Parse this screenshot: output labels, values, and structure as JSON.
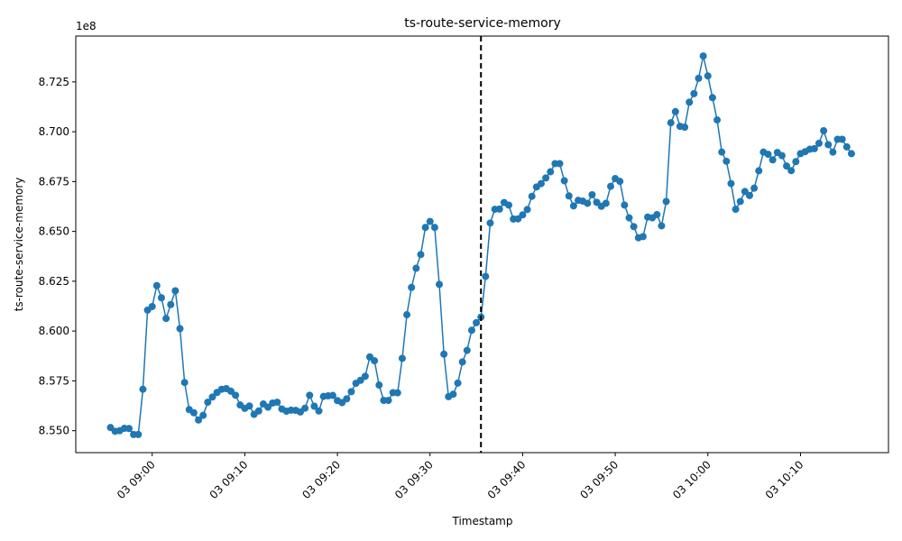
{
  "chart_data": {
    "type": "line",
    "title": "ts-route-service-memory",
    "xlabel": "Timestamp",
    "ylabel": "ts-route-service-memory",
    "y_offset_label": "1e8",
    "x_ticks": [
      "03 09:00",
      "03 09:10",
      "03 09:20",
      "03 09:30",
      "03 09:40",
      "03 09:50",
      "03 10:00",
      "03 10:10"
    ],
    "y_ticks": [
      "8.550",
      "8.575",
      "8.600",
      "8.625",
      "8.650",
      "8.675",
      "8.700",
      "8.725"
    ],
    "ylim": [
      853900000,
      874800000
    ],
    "xlim_minutes": [
      -8.25,
      79.5
    ],
    "grid": false,
    "marker": "circle",
    "series_color": "#1f77b4",
    "vline": {
      "x": "03 09:35:30",
      "style": "dashed",
      "color": "#000000"
    },
    "series": [
      {
        "x": [
          "03 08:55:30",
          "03 08:56:00",
          "03 08:56:30",
          "03 08:57:00",
          "03 08:57:30",
          "03 08:58:00",
          "03 08:58:30",
          "03 08:59:00",
          "03 08:59:30",
          "03 09:00:00",
          "03 09:00:30",
          "03 09:01:00",
          "03 09:01:30",
          "03 09:02:00",
          "03 09:02:30",
          "03 09:03:00",
          "03 09:03:30",
          "03 09:04:00",
          "03 09:04:30",
          "03 09:05:00",
          "03 09:05:30",
          "03 09:06:00",
          "03 09:06:30",
          "03 09:07:00",
          "03 09:07:30",
          "03 09:08:00",
          "03 09:08:30",
          "03 09:09:00",
          "03 09:09:30",
          "03 09:10:00",
          "03 09:10:30",
          "03 09:11:00",
          "03 09:11:30",
          "03 09:12:00",
          "03 09:12:30",
          "03 09:13:00",
          "03 09:13:30",
          "03 09:14:00",
          "03 09:14:30",
          "03 09:15:00",
          "03 09:15:30",
          "03 09:16:00",
          "03 09:16:30",
          "03 09:17:00",
          "03 09:17:30",
          "03 09:18:00",
          "03 09:18:30",
          "03 09:19:00",
          "03 09:19:30",
          "03 09:20:00",
          "03 09:20:30",
          "03 09:21:00",
          "03 09:21:30",
          "03 09:22:00",
          "03 09:22:30",
          "03 09:23:00",
          "03 09:23:30",
          "03 09:24:00",
          "03 09:24:30",
          "03 09:25:00",
          "03 09:25:30",
          "03 09:26:00",
          "03 09:26:30",
          "03 09:27:00",
          "03 09:27:30",
          "03 09:28:00",
          "03 09:28:30",
          "03 09:29:00",
          "03 09:29:30",
          "03 09:30:00",
          "03 09:30:30",
          "03 09:31:00",
          "03 09:31:30",
          "03 09:32:00",
          "03 09:32:30",
          "03 09:33:00",
          "03 09:33:30",
          "03 09:34:00",
          "03 09:34:30",
          "03 09:35:00",
          "03 09:35:30",
          "03 09:36:00",
          "03 09:36:30",
          "03 09:37:00",
          "03 09:37:30",
          "03 09:38:00",
          "03 09:38:30",
          "03 09:39:00",
          "03 09:39:30",
          "03 09:40:00",
          "03 09:40:30",
          "03 09:41:00",
          "03 09:41:30",
          "03 09:42:00",
          "03 09:42:30",
          "03 09:43:00",
          "03 09:43:30",
          "03 09:44:00",
          "03 09:44:30",
          "03 09:45:00",
          "03 09:45:30",
          "03 09:46:00",
          "03 09:46:30",
          "03 09:47:00",
          "03 09:47:30",
          "03 09:48:00",
          "03 09:48:30",
          "03 09:49:00",
          "03 09:49:30",
          "03 09:50:00",
          "03 09:50:30",
          "03 09:51:00",
          "03 09:51:30",
          "03 09:52:00",
          "03 09:52:30",
          "03 09:53:00",
          "03 09:53:30",
          "03 09:54:00",
          "03 09:54:30",
          "03 09:55:00",
          "03 09:55:30",
          "03 09:56:00",
          "03 09:56:30",
          "03 09:57:00",
          "03 09:57:30",
          "03 09:58:00",
          "03 09:58:30",
          "03 09:59:00",
          "03 09:59:30",
          "03 10:00:00",
          "03 10:00:30",
          "03 10:01:00",
          "03 10:01:30",
          "03 10:02:00",
          "03 10:02:30",
          "03 10:03:00",
          "03 10:03:30",
          "03 10:04:00",
          "03 10:04:30",
          "03 10:05:00",
          "03 10:05:30",
          "03 10:06:00",
          "03 10:06:30",
          "03 10:07:00",
          "03 10:07:30",
          "03 10:08:00",
          "03 10:08:30",
          "03 10:09:00",
          "03 10:09:30",
          "03 10:10:00",
          "03 10:10:30",
          "03 10:11:00",
          "03 10:11:30",
          "03 10:12:00",
          "03 10:12:30",
          "03 10:13:00",
          "03 10:13:30",
          "03 10:14:00",
          "03 10:14:30",
          "03 10:15:00",
          "03 10:15:30"
        ],
        "values": [
          855160000,
          854970000,
          855000000,
          855120000,
          855110000,
          854810000,
          854810000,
          857080000,
          861050000,
          861230000,
          862280000,
          861670000,
          860630000,
          861330000,
          862020000,
          860120000,
          857420000,
          856060000,
          855900000,
          855540000,
          855770000,
          856430000,
          856690000,
          856920000,
          857080000,
          857110000,
          856980000,
          856780000,
          856290000,
          856120000,
          856240000,
          855820000,
          855990000,
          856340000,
          856180000,
          856390000,
          856430000,
          856090000,
          855980000,
          856030000,
          856020000,
          855940000,
          856130000,
          856780000,
          856230000,
          855990000,
          856720000,
          856750000,
          856770000,
          856510000,
          856410000,
          856600000,
          856960000,
          857380000,
          857530000,
          857730000,
          858700000,
          858510000,
          857290000,
          856520000,
          856520000,
          856910000,
          856900000,
          858630000,
          860820000,
          862190000,
          863150000,
          863840000,
          865200000,
          865500000,
          865200000,
          862340000,
          858840000,
          856710000,
          856830000,
          857390000,
          858450000,
          859030000,
          860040000,
          860420000,
          860700000,
          862740000,
          865420000,
          866110000,
          866120000,
          866450000,
          866320000,
          865620000,
          865630000,
          865830000,
          866100000,
          866760000,
          867230000,
          867400000,
          867680000,
          867990000,
          868400000,
          868400000,
          867540000,
          866780000,
          866280000,
          866560000,
          866520000,
          866410000,
          866840000,
          866460000,
          866260000,
          866410000,
          867260000,
          867650000,
          867510000,
          866320000,
          865680000,
          865240000,
          864680000,
          864740000,
          865720000,
          865680000,
          865840000,
          865280000,
          866500000,
          870450000,
          871010000,
          870270000,
          870230000,
          871480000,
          871910000,
          872680000,
          873800000,
          872800000,
          871710000,
          870590000,
          868980000,
          868520000,
          867400000,
          866110000,
          866500000,
          867000000,
          866800000,
          867170000,
          868040000,
          868980000,
          868870000,
          868590000,
          868960000,
          868800000,
          868280000,
          868050000,
          868500000,
          868900000,
          869000000,
          869120000,
          869150000,
          869420000,
          870050000,
          869350000,
          868980000,
          869620000,
          869620000,
          869240000,
          868900000
        ]
      }
    ]
  }
}
